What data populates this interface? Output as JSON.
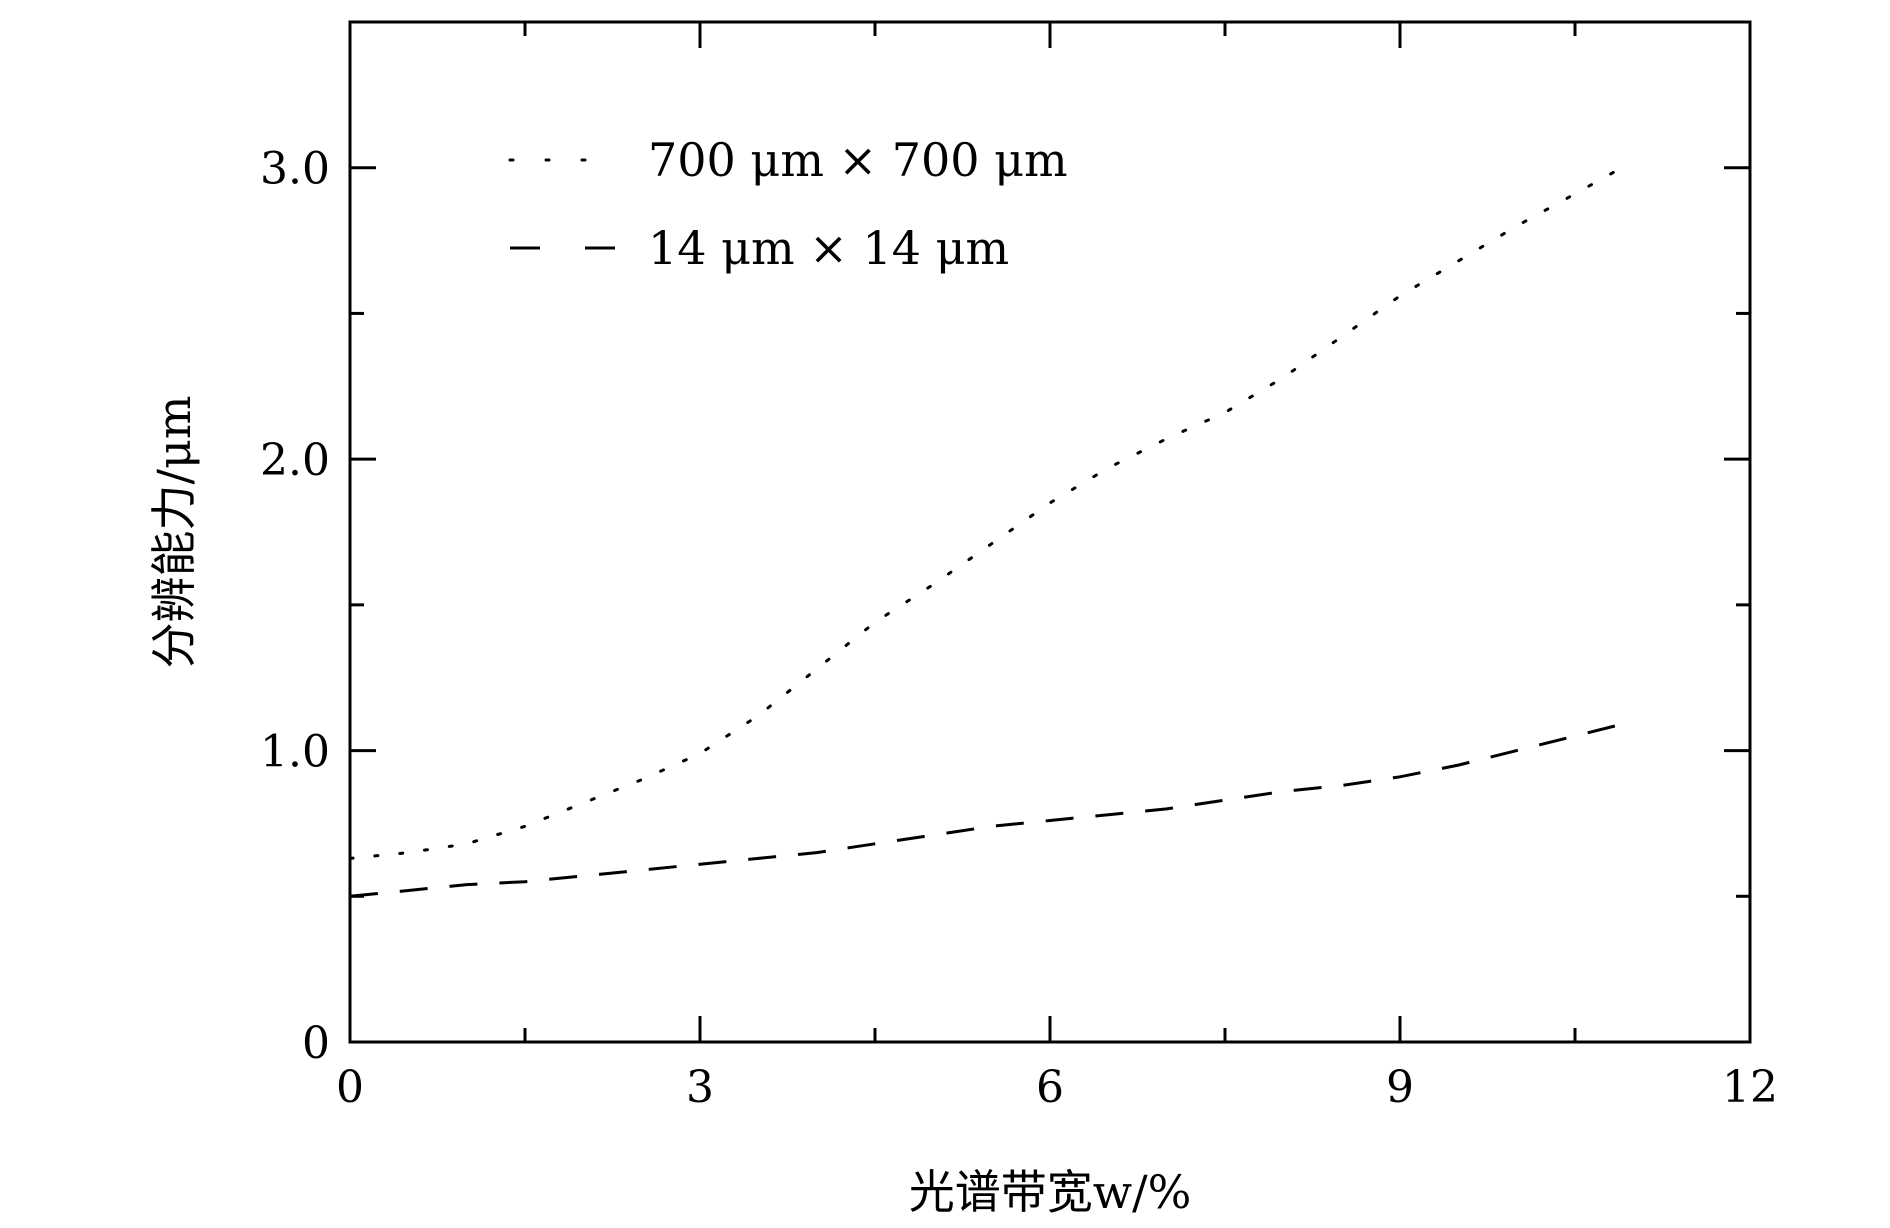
{
  "chart_data": {
    "type": "line",
    "title": "",
    "xlabel": "光谱带宽w/%",
    "ylabel": "分辨能力/μm",
    "xlim": [
      0,
      12
    ],
    "ylim": [
      0,
      3.5
    ],
    "x_ticks": [
      0,
      3,
      6,
      9,
      12
    ],
    "x_tick_labels": [
      "0",
      "3",
      "6",
      "9",
      "12"
    ],
    "y_ticks": [
      0,
      1.0,
      2.0,
      3.0
    ],
    "y_tick_labels": [
      "0",
      "1.0",
      "2.0",
      "3.0"
    ],
    "grid": false,
    "legend_position": "top-left",
    "series": [
      {
        "name": "700 μm × 700 μm",
        "style": "dotted",
        "color": "#000000",
        "x": [
          0,
          0.5,
          1.0,
          1.5,
          2.0,
          2.5,
          3.0,
          3.5,
          4.0,
          4.5,
          5.0,
          5.5,
          6.0,
          6.5,
          7.0,
          7.5,
          8.0,
          8.5,
          9.0,
          9.5,
          10.0,
          10.5,
          10.9
        ],
        "y": [
          0.63,
          0.65,
          0.68,
          0.74,
          0.82,
          0.9,
          0.99,
          1.12,
          1.28,
          1.44,
          1.57,
          1.71,
          1.85,
          1.97,
          2.07,
          2.16,
          2.28,
          2.42,
          2.56,
          2.68,
          2.8,
          2.91,
          3.0
        ]
      },
      {
        "name": "14 μm × 14 μm",
        "style": "dashed",
        "color": "#000000",
        "x": [
          0,
          0.5,
          1.0,
          1.5,
          2.0,
          2.5,
          3.0,
          3.5,
          4.0,
          4.5,
          5.0,
          5.5,
          6.0,
          6.5,
          7.0,
          7.5,
          8.0,
          8.5,
          9.0,
          9.5,
          10.0,
          10.5,
          10.9
        ],
        "y": [
          0.5,
          0.52,
          0.54,
          0.55,
          0.57,
          0.59,
          0.61,
          0.63,
          0.65,
          0.68,
          0.71,
          0.74,
          0.76,
          0.78,
          0.8,
          0.83,
          0.86,
          0.88,
          0.91,
          0.95,
          1.0,
          1.05,
          1.09
        ]
      }
    ]
  }
}
